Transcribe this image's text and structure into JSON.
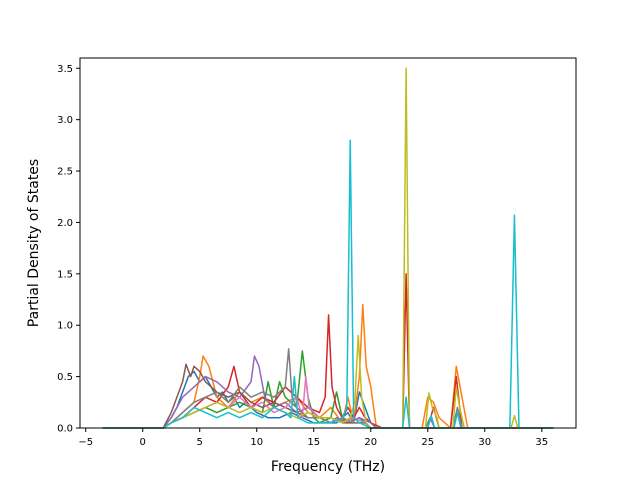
{
  "chart_data": {
    "type": "line",
    "title": "",
    "xlabel": "Frequency (THz)",
    "ylabel": "Partial Density of States",
    "xlim": [
      -5.5,
      38
    ],
    "ylim": [
      0,
      3.6
    ],
    "xticks": [
      -5,
      0,
      5,
      10,
      15,
      20,
      25,
      30,
      35
    ],
    "xtick_labels": [
      "−5",
      "0",
      "5",
      "10",
      "15",
      "20",
      "25",
      "30",
      "35"
    ],
    "yticks": [
      0,
      0.5,
      1.0,
      1.5,
      2.0,
      2.5,
      3.0,
      3.5
    ],
    "ytick_labels": [
      "0.0",
      "0.5",
      "1.0",
      "1.5",
      "2.0",
      "2.5",
      "3.0",
      "3.5"
    ],
    "grid": false,
    "legend": "none",
    "series": [
      {
        "color": "#1f77b4",
        "x": [
          -3.5,
          1.8,
          2.5,
          3,
          3.5,
          4,
          4.5,
          5,
          5.5,
          6,
          6.5,
          7,
          7.5,
          8,
          8.5,
          9,
          10,
          11,
          12,
          13,
          14,
          15,
          16,
          17,
          17.5,
          18,
          18.5,
          19,
          20,
          20.5,
          36
        ],
        "y": [
          0,
          0,
          0.1,
          0.2,
          0.35,
          0.5,
          0.55,
          0.45,
          0.5,
          0.4,
          0.3,
          0.35,
          0.25,
          0.3,
          0.2,
          0.25,
          0.15,
          0.1,
          0.1,
          0.15,
          0.1,
          0.05,
          0.05,
          0.05,
          0.1,
          0.15,
          0.05,
          0.35,
          0.05,
          0,
          0
        ]
      },
      {
        "color": "#ff7f0e",
        "x": [
          -3.5,
          1.8,
          2.5,
          3.5,
          4.5,
          5,
          5.3,
          5.8,
          6.5,
          7.5,
          8.5,
          9.5,
          10.5,
          11.5,
          12.5,
          13.5,
          14.5,
          15.5,
          16.5,
          17.5,
          18,
          18.5,
          19,
          19.3,
          19.6,
          20,
          20.5,
          21,
          23,
          24.5,
          25,
          25.5,
          26,
          27,
          27.5,
          28,
          28.5,
          36
        ],
        "y": [
          0,
          0,
          0.05,
          0.15,
          0.25,
          0.5,
          0.7,
          0.6,
          0.3,
          0.2,
          0.35,
          0.25,
          0.3,
          0.2,
          0.25,
          0.3,
          0.15,
          0.1,
          0.2,
          0.05,
          0.3,
          0.05,
          0.5,
          1.2,
          0.6,
          0.4,
          0,
          0,
          0,
          0,
          0.3,
          0.25,
          0.1,
          0,
          0.6,
          0.3,
          0,
          0
        ]
      },
      {
        "color": "#2ca02c",
        "x": [
          -3.5,
          1.8,
          2.5,
          3.5,
          4.5,
          5.5,
          6.5,
          7.5,
          8.5,
          9.5,
          10.5,
          11,
          11.5,
          12,
          12.5,
          13.5,
          14,
          14.5,
          15,
          15.5,
          16.5,
          17,
          17.5,
          18,
          19,
          20,
          36
        ],
        "y": [
          0,
          0,
          0.05,
          0.1,
          0.15,
          0.2,
          0.15,
          0.2,
          0.25,
          0.2,
          0.15,
          0.45,
          0.2,
          0.45,
          0.3,
          0.2,
          0.75,
          0.3,
          0.1,
          0.05,
          0.1,
          0.35,
          0.1,
          0.05,
          0.1,
          0,
          0
        ]
      },
      {
        "color": "#d62728",
        "x": [
          -3.5,
          1.8,
          2.5,
          3.5,
          4.5,
          5.5,
          6.5,
          7.5,
          8,
          8.5,
          9.5,
          10.5,
          11.5,
          12.5,
          13.5,
          14.5,
          15.5,
          16,
          16.3,
          16.6,
          17,
          17.5,
          18,
          18.5,
          19,
          19.5,
          20,
          21,
          22.8,
          23.1,
          23.4,
          24,
          25,
          25.5,
          26,
          27,
          27.5,
          28,
          36
        ],
        "y": [
          0,
          0,
          0.05,
          0.1,
          0.2,
          0.3,
          0.25,
          0.4,
          0.6,
          0.35,
          0.2,
          0.3,
          0.25,
          0.4,
          0.3,
          0.2,
          0.15,
          0.3,
          1.1,
          0.4,
          0.2,
          0.1,
          0.2,
          0.1,
          0.2,
          0.1,
          0.05,
          0,
          0,
          1.5,
          0,
          0,
          0,
          0.2,
          0,
          0,
          0.5,
          0,
          0
        ]
      },
      {
        "color": "#9467bd",
        "x": [
          -3.5,
          1.8,
          2.5,
          3.5,
          4.5,
          5.5,
          6.5,
          7.5,
          8.5,
          9.5,
          9.8,
          10.2,
          10.7,
          11.5,
          12.5,
          13.5,
          14.5,
          15.5,
          16.5,
          17,
          18,
          19,
          20,
          20.5,
          36
        ],
        "y": [
          0,
          0,
          0.1,
          0.3,
          0.4,
          0.5,
          0.45,
          0.35,
          0.3,
          0.45,
          0.7,
          0.6,
          0.3,
          0.2,
          0.25,
          0.15,
          0.2,
          0.1,
          0.05,
          0.1,
          0.05,
          0.1,
          0.05,
          0,
          0
        ]
      },
      {
        "color": "#8c564b",
        "x": [
          -3.5,
          1.8,
          2.5,
          3,
          3.5,
          3.8,
          4.2,
          4.5,
          5,
          5.5,
          6.5,
          7.5,
          8.5,
          9.5,
          10.5,
          11.5,
          12.5,
          13.5,
          14.5,
          15.5,
          16.5,
          17.5,
          18.5,
          19.5,
          20,
          36
        ],
        "y": [
          0,
          0,
          0.15,
          0.3,
          0.45,
          0.62,
          0.5,
          0.6,
          0.55,
          0.45,
          0.35,
          0.3,
          0.35,
          0.25,
          0.2,
          0.25,
          0.2,
          0.15,
          0.1,
          0.1,
          0.1,
          0.05,
          0.05,
          0.05,
          0,
          0
        ]
      },
      {
        "color": "#e377c2",
        "x": [
          -3.5,
          1.8,
          2.5,
          3.5,
          4.5,
          5.5,
          6.5,
          7.5,
          8.5,
          9.5,
          10.5,
          11.5,
          12.5,
          13.5,
          14,
          14.3,
          14.6,
          15.5,
          16.5,
          17.5,
          18.5,
          19.5,
          20,
          36
        ],
        "y": [
          0,
          0,
          0.05,
          0.1,
          0.15,
          0.2,
          0.25,
          0.2,
          0.3,
          0.2,
          0.25,
          0.15,
          0.2,
          0.3,
          0.1,
          0.5,
          0.2,
          0.1,
          0.1,
          0.05,
          0.1,
          0.05,
          0,
          0
        ]
      },
      {
        "color": "#7f7f7f",
        "x": [
          -3.5,
          1.8,
          2.5,
          3.5,
          4.5,
          5.5,
          6.5,
          7.5,
          8.5,
          9.5,
          10.5,
          11.5,
          12.5,
          12.8,
          13.1,
          13.5,
          14.5,
          15.5,
          16.5,
          17.5,
          18.5,
          19.5,
          20,
          24.8,
          25.2,
          25.6,
          27.2,
          27.6,
          28,
          36
        ],
        "y": [
          0,
          0,
          0.05,
          0.15,
          0.25,
          0.3,
          0.35,
          0.25,
          0.4,
          0.3,
          0.35,
          0.3,
          0.4,
          0.77,
          0.3,
          0.2,
          0.1,
          0.1,
          0.05,
          0.1,
          0.05,
          0.05,
          0,
          0,
          0.1,
          0,
          0,
          0.2,
          0,
          0
        ]
      },
      {
        "color": "#bcbd22",
        "x": [
          -3.5,
          1.8,
          2.5,
          3.5,
          4.5,
          5.5,
          6.5,
          7.5,
          8.5,
          9.5,
          10.5,
          11.5,
          12.5,
          13.5,
          14.5,
          15.5,
          16.5,
          17.5,
          18.2,
          18.6,
          18.9,
          19.2,
          19.6,
          20,
          22.8,
          23.1,
          23.4,
          24.8,
          25.1,
          25.4,
          25.8,
          26,
          27.2,
          27.5,
          27.8,
          28.2,
          32.3,
          32.6,
          32.9,
          36
        ],
        "y": [
          0,
          0,
          0.05,
          0.1,
          0.15,
          0.2,
          0.25,
          0.2,
          0.15,
          0.2,
          0.15,
          0.2,
          0.15,
          0.1,
          0.15,
          0.1,
          0.1,
          0.05,
          0.1,
          0.25,
          0.9,
          0.3,
          0.05,
          0,
          0,
          3.5,
          0,
          0,
          0.34,
          0.2,
          0.1,
          0,
          0,
          0.4,
          0.2,
          0,
          0,
          0.12,
          0,
          0
        ]
      },
      {
        "color": "#17becf",
        "x": [
          -3.5,
          1.8,
          2.5,
          3.5,
          4.5,
          5.5,
          6.5,
          7.5,
          8.5,
          9.5,
          10.5,
          11.5,
          12.5,
          13,
          13.3,
          13.6,
          14.5,
          15.5,
          16.5,
          17.5,
          17.9,
          18.2,
          18.5,
          19,
          20,
          22.8,
          23.1,
          23.4,
          25,
          25.3,
          25.6,
          27.3,
          27.6,
          27.9,
          32.2,
          32.6,
          33,
          36
        ],
        "y": [
          0,
          0,
          0.05,
          0.1,
          0.2,
          0.15,
          0.1,
          0.15,
          0.1,
          0.15,
          0.1,
          0.2,
          0.15,
          0.1,
          0.5,
          0.1,
          0.05,
          0.05,
          0.05,
          0.1,
          0.2,
          2.8,
          0.1,
          0.05,
          0,
          0,
          0.3,
          0,
          0,
          0.12,
          0,
          0,
          0.15,
          0,
          0,
          2.07,
          0,
          0
        ]
      }
    ]
  }
}
